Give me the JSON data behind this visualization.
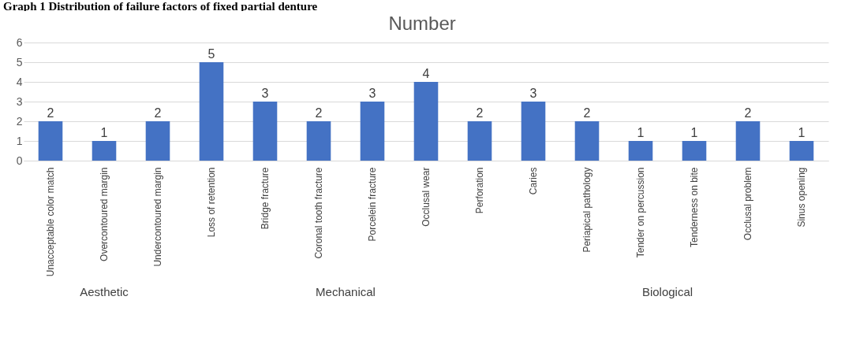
{
  "chart_data": {
    "type": "bar",
    "title": "Number",
    "categories": [
      "Unacceptable color match",
      "Overcontoured margin",
      "Undercontoured margin",
      "Loss of retention",
      "Bridge fracture",
      "Coronal tooth fracture",
      "Porcelein fracture",
      "Occlusal wear",
      "Perforation",
      "Caries",
      "Periapical pathology",
      "Tender on percussion",
      "Tenderness on bite",
      "Occlusal problem",
      "Sinus opening"
    ],
    "values": [
      2,
      1,
      2,
      5,
      3,
      2,
      3,
      4,
      2,
      3,
      2,
      1,
      1,
      2,
      1
    ],
    "color": "#4472c4",
    "ylim": [
      0,
      6
    ],
    "yticks": [
      0,
      1,
      2,
      3,
      4,
      5,
      6
    ],
    "grid": true,
    "data_labels": true,
    "annotations": [
      "Graph 1 Distribution of failure factors of fixed partial denture",
      "Aesthetic",
      "Mechanical",
      "Biological"
    ]
  }
}
